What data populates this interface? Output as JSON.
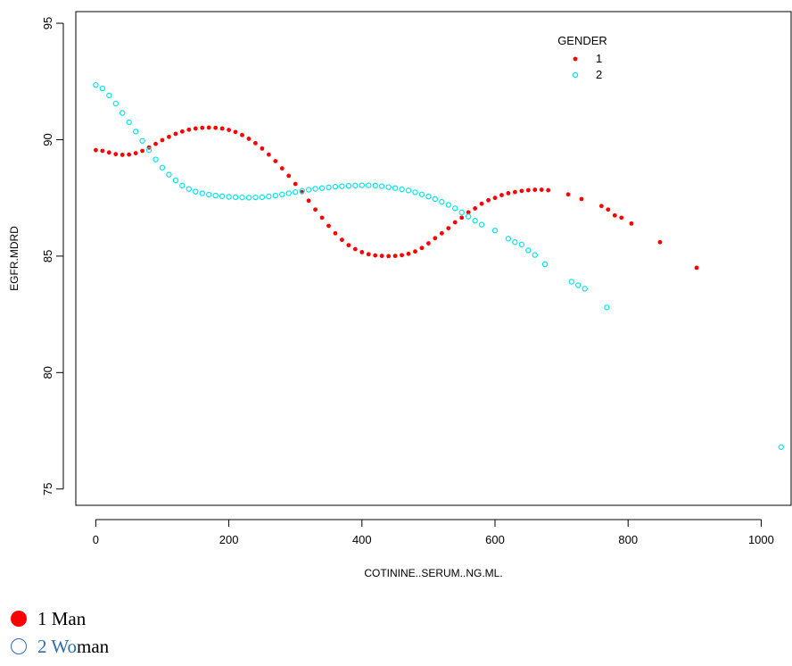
{
  "chart_data": {
    "type": "scatter",
    "xlabel": "COTININE..SERUM..NG.ML.",
    "ylabel": "EGFR.MDRD",
    "xlim": [
      -30,
      1045
    ],
    "ylim": [
      74.3,
      95.5
    ],
    "x_ticks": [
      0,
      200,
      400,
      600,
      800,
      1000
    ],
    "y_ticks": [
      75,
      80,
      85,
      90,
      95
    ],
    "legend": {
      "title": "GENDER",
      "position": "top-right"
    },
    "series": [
      {
        "name": "1",
        "color": "#ff0000",
        "marker": "filled-circle",
        "points": [
          [
            0,
            89.55
          ],
          [
            10,
            89.52
          ],
          [
            20,
            89.45
          ],
          [
            30,
            89.38
          ],
          [
            40,
            89.35
          ],
          [
            50,
            89.36
          ],
          [
            60,
            89.42
          ],
          [
            70,
            89.52
          ],
          [
            80,
            89.66
          ],
          [
            90,
            89.82
          ],
          [
            100,
            89.98
          ],
          [
            110,
            90.12
          ],
          [
            120,
            90.25
          ],
          [
            130,
            90.35
          ],
          [
            140,
            90.43
          ],
          [
            150,
            90.48
          ],
          [
            160,
            90.51
          ],
          [
            170,
            90.52
          ],
          [
            180,
            90.51
          ],
          [
            190,
            90.48
          ],
          [
            200,
            90.42
          ],
          [
            210,
            90.33
          ],
          [
            220,
            90.2
          ],
          [
            230,
            90.04
          ],
          [
            240,
            89.85
          ],
          [
            250,
            89.62
          ],
          [
            260,
            89.36
          ],
          [
            270,
            89.08
          ],
          [
            280,
            88.77
          ],
          [
            290,
            88.45
          ],
          [
            300,
            88.1
          ],
          [
            310,
            87.75
          ],
          [
            320,
            87.38
          ],
          [
            330,
            87.0
          ],
          [
            340,
            86.65
          ],
          [
            350,
            86.3
          ],
          [
            360,
            85.98
          ],
          [
            370,
            85.7
          ],
          [
            380,
            85.47
          ],
          [
            390,
            85.3
          ],
          [
            400,
            85.17
          ],
          [
            410,
            85.08
          ],
          [
            420,
            85.03
          ],
          [
            430,
            85.01
          ],
          [
            440,
            85.0
          ],
          [
            450,
            85.01
          ],
          [
            460,
            85.04
          ],
          [
            470,
            85.1
          ],
          [
            480,
            85.2
          ],
          [
            490,
            85.35
          ],
          [
            500,
            85.55
          ],
          [
            510,
            85.77
          ],
          [
            520,
            85.98
          ],
          [
            530,
            86.2
          ],
          [
            540,
            86.45
          ],
          [
            550,
            86.65
          ],
          [
            560,
            86.88
          ],
          [
            570,
            87.05
          ],
          [
            580,
            87.25
          ],
          [
            590,
            87.4
          ],
          [
            600,
            87.5
          ],
          [
            610,
            87.62
          ],
          [
            620,
            87.7
          ],
          [
            630,
            87.75
          ],
          [
            640,
            87.8
          ],
          [
            650,
            87.83
          ],
          [
            660,
            87.85
          ],
          [
            670,
            87.85
          ],
          [
            680,
            87.83
          ],
          [
            710,
            87.65
          ],
          [
            730,
            87.45
          ],
          [
            760,
            87.15
          ],
          [
            770,
            87.0
          ],
          [
            780,
            86.75
          ],
          [
            790,
            86.65
          ],
          [
            805,
            86.4
          ],
          [
            848,
            85.6
          ],
          [
            903,
            84.5
          ]
        ]
      },
      {
        "name": "2",
        "color": "#00e5ee",
        "marker": "open-circle",
        "points": [
          [
            0,
            92.35
          ],
          [
            10,
            92.2
          ],
          [
            20,
            91.9
          ],
          [
            30,
            91.55
          ],
          [
            40,
            91.15
          ],
          [
            50,
            90.75
          ],
          [
            60,
            90.35
          ],
          [
            70,
            89.95
          ],
          [
            80,
            89.55
          ],
          [
            90,
            89.15
          ],
          [
            100,
            88.8
          ],
          [
            110,
            88.5
          ],
          [
            120,
            88.25
          ],
          [
            130,
            88.03
          ],
          [
            140,
            87.88
          ],
          [
            150,
            87.77
          ],
          [
            160,
            87.7
          ],
          [
            170,
            87.64
          ],
          [
            180,
            87.6
          ],
          [
            190,
            87.57
          ],
          [
            200,
            87.55
          ],
          [
            210,
            87.53
          ],
          [
            220,
            87.52
          ],
          [
            230,
            87.51
          ],
          [
            240,
            87.52
          ],
          [
            250,
            87.53
          ],
          [
            260,
            87.56
          ],
          [
            270,
            87.6
          ],
          [
            280,
            87.65
          ],
          [
            290,
            87.7
          ],
          [
            300,
            87.75
          ],
          [
            310,
            87.8
          ],
          [
            320,
            87.85
          ],
          [
            330,
            87.89
          ],
          [
            340,
            87.92
          ],
          [
            350,
            87.95
          ],
          [
            360,
            87.98
          ],
          [
            370,
            88.0
          ],
          [
            380,
            88.02
          ],
          [
            390,
            88.03
          ],
          [
            400,
            88.04
          ],
          [
            410,
            88.04
          ],
          [
            420,
            88.03
          ],
          [
            430,
            88.0
          ],
          [
            440,
            87.96
          ],
          [
            450,
            87.92
          ],
          [
            460,
            87.87
          ],
          [
            470,
            87.82
          ],
          [
            480,
            87.74
          ],
          [
            490,
            87.65
          ],
          [
            500,
            87.56
          ],
          [
            510,
            87.45
          ],
          [
            520,
            87.33
          ],
          [
            530,
            87.2
          ],
          [
            540,
            87.05
          ],
          [
            550,
            86.88
          ],
          [
            560,
            86.7
          ],
          [
            570,
            86.52
          ],
          [
            580,
            86.35
          ],
          [
            600,
            86.1
          ],
          [
            620,
            85.75
          ],
          [
            630,
            85.6
          ],
          [
            640,
            85.5
          ],
          [
            650,
            85.25
          ],
          [
            660,
            85.05
          ],
          [
            675,
            84.65
          ],
          [
            715,
            83.9
          ],
          [
            725,
            83.75
          ],
          [
            735,
            83.6
          ],
          [
            768,
            82.8
          ],
          [
            1030,
            76.8
          ]
        ]
      }
    ]
  },
  "caption": {
    "item1": "1 Man",
    "item2_colored": "2 Wo",
    "item2_tail": "man"
  }
}
